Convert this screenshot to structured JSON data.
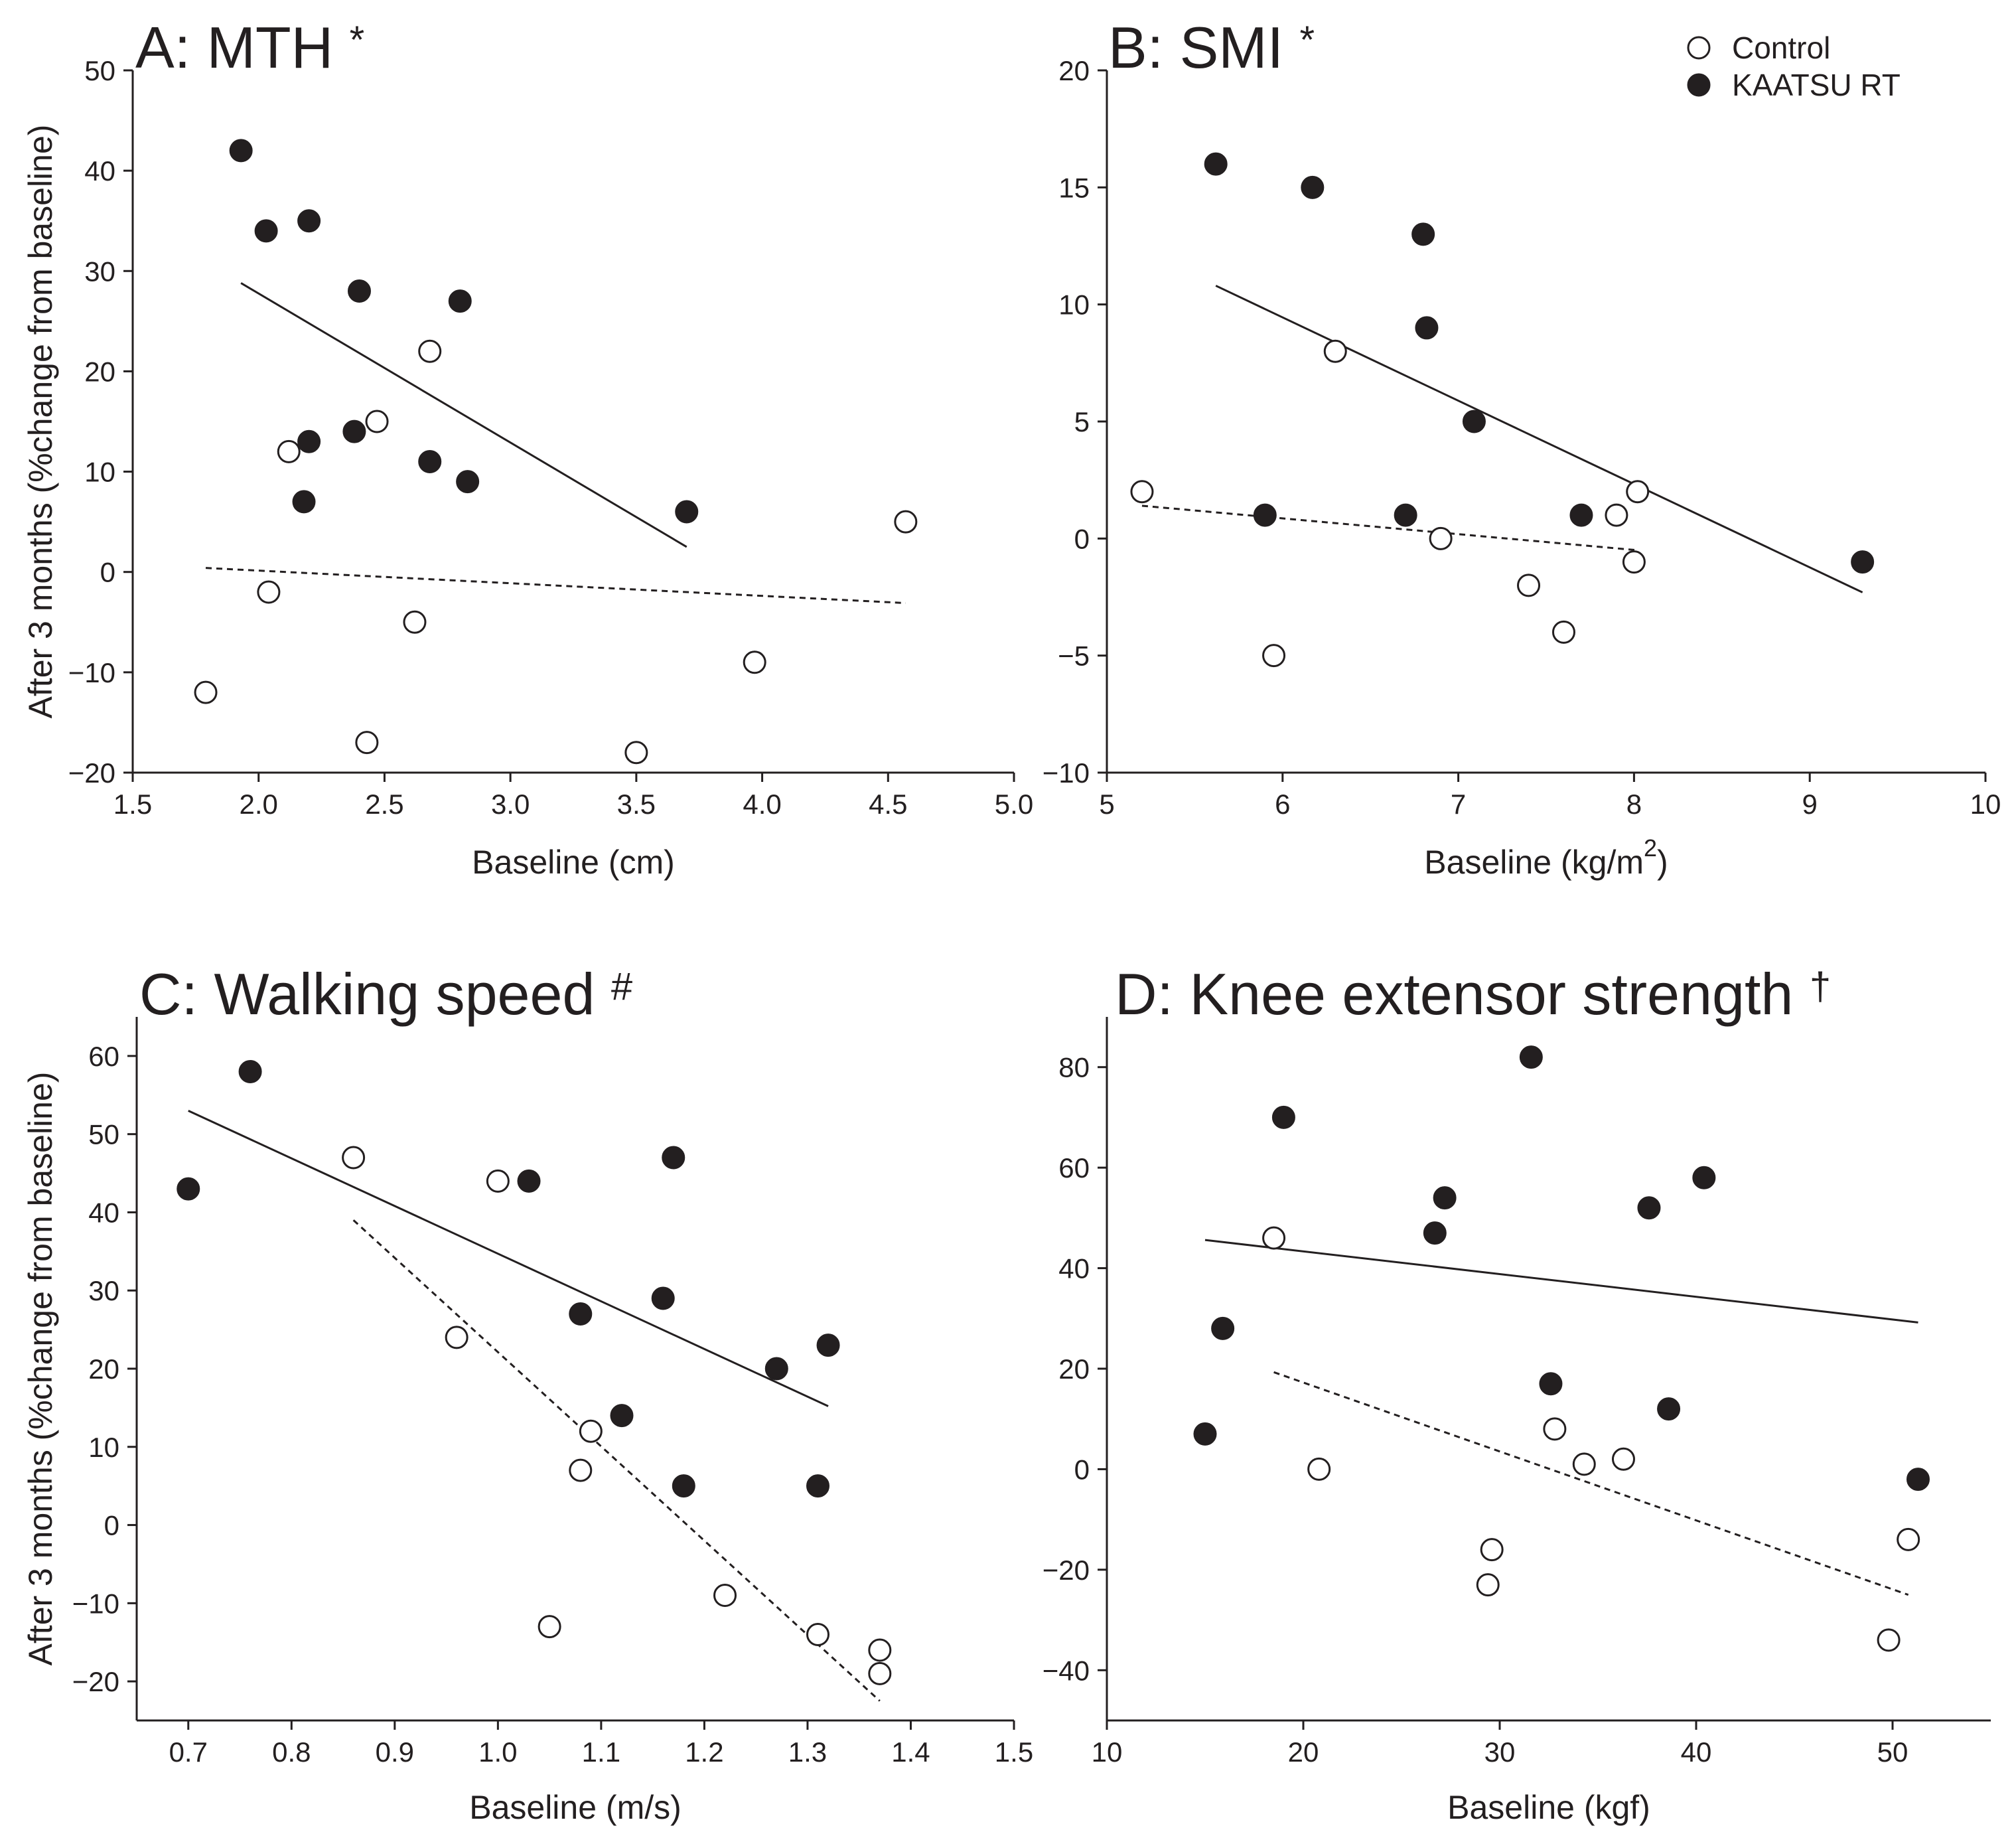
{
  "ylabel": "After 3 months (%change from baseline)",
  "legend": {
    "position": "top-right",
    "items": [
      {
        "label": "Control",
        "marker": "open-circle"
      },
      {
        "label": "KAATSU RT",
        "marker": "filled-circle"
      }
    ]
  },
  "colors": {
    "ink": "#231f20",
    "background": "#ffffff"
  },
  "chart_data": [
    {
      "type": "scatter",
      "title": "A: MTH",
      "title_mark": "*",
      "xlabel": "Baseline (cm)",
      "ylabel": "After 3 months (%change from baseline)",
      "xlim": [
        1.5,
        5.0
      ],
      "ylim": [
        -20,
        50
      ],
      "xticks": [
        1.5,
        2.0,
        2.5,
        3.0,
        3.5,
        4.0,
        4.5,
        5.0
      ],
      "xtick_labels": [
        "1.5",
        "2.0",
        "2.5",
        "3.0",
        "3.5",
        "4.0",
        "4.5",
        "5.0"
      ],
      "yticks": [
        -20,
        -10,
        0,
        10,
        20,
        30,
        40,
        50
      ],
      "ytick_labels": [
        "−20",
        "−10",
        "0",
        "10",
        "20",
        "30",
        "40",
        "50"
      ],
      "series": [
        {
          "name": "Control",
          "points": [
            [
              1.79,
              -12
            ],
            [
              2.04,
              -2
            ],
            [
              2.12,
              12
            ],
            [
              2.43,
              -17
            ],
            [
              2.47,
              15
            ],
            [
              2.62,
              -5
            ],
            [
              2.68,
              22
            ],
            [
              3.5,
              -18
            ],
            [
              3.97,
              -9
            ],
            [
              4.57,
              5
            ]
          ]
        },
        {
          "name": "KAATSU RT",
          "points": [
            [
              1.93,
              42
            ],
            [
              2.03,
              34
            ],
            [
              2.2,
              35
            ],
            [
              2.4,
              28
            ],
            [
              2.8,
              27
            ],
            [
              2.38,
              14
            ],
            [
              2.2,
              13
            ],
            [
              2.68,
              11
            ],
            [
              2.18,
              7
            ],
            [
              2.83,
              9
            ],
            [
              3.7,
              6
            ]
          ]
        }
      ],
      "fit_lines": [
        {
          "series": "KAATSU RT",
          "style": "solid",
          "from": [
            1.93,
            28.8
          ],
          "to": [
            3.7,
            2.5
          ]
        },
        {
          "series": "Control",
          "style": "dashed",
          "from": [
            1.79,
            0.4
          ],
          "to": [
            4.57,
            -3.1
          ]
        }
      ]
    },
    {
      "type": "scatter",
      "title": "B: SMI",
      "title_mark": "*",
      "xlabel": "Baseline (kg/m",
      "xlabel_sup": "2",
      "xlabel_end": ")",
      "ylabel": "",
      "xlim": [
        5,
        10
      ],
      "ylim": [
        -10,
        20
      ],
      "xticks": [
        5,
        6,
        7,
        8,
        9,
        10
      ],
      "xtick_labels": [
        "5",
        "6",
        "7",
        "8",
        "9",
        "10"
      ],
      "yticks": [
        -10,
        -5,
        0,
        5,
        10,
        15,
        20
      ],
      "ytick_labels": [
        "−10",
        "−5",
        "0",
        "5",
        "10",
        "15",
        "20"
      ],
      "series": [
        {
          "name": "Control",
          "points": [
            [
              5.2,
              2
            ],
            [
              5.95,
              -5
            ],
            [
              6.3,
              8
            ],
            [
              6.9,
              0
            ],
            [
              7.4,
              -2
            ],
            [
              7.6,
              -4
            ],
            [
              7.9,
              1
            ],
            [
              8.0,
              -1
            ],
            [
              8.02,
              2
            ]
          ]
        },
        {
          "name": "KAATSU RT",
          "points": [
            [
              5.62,
              16
            ],
            [
              6.17,
              15
            ],
            [
              6.8,
              13
            ],
            [
              6.82,
              9
            ],
            [
              7.09,
              5
            ],
            [
              5.9,
              1
            ],
            [
              6.7,
              1
            ],
            [
              7.7,
              1
            ],
            [
              9.3,
              -1
            ]
          ]
        }
      ],
      "fit_lines": [
        {
          "series": "KAATSU RT",
          "style": "solid",
          "from": [
            5.62,
            10.8
          ],
          "to": [
            9.3,
            -2.3
          ]
        },
        {
          "series": "Control",
          "style": "dashed",
          "from": [
            5.2,
            1.4
          ],
          "to": [
            8.02,
            -0.5
          ]
        }
      ]
    },
    {
      "type": "scatter",
      "title": "C: Walking speed",
      "title_mark": "#",
      "xlabel": "Baseline (m/s)",
      "ylabel": "After 3 months (%change from baseline)",
      "xlim": [
        0.65,
        1.5
      ],
      "ylim": [
        -25,
        65
      ],
      "xticks": [
        0.7,
        0.8,
        0.9,
        1.0,
        1.1,
        1.2,
        1.3,
        1.4,
        1.5
      ],
      "xtick_labels": [
        "0.7",
        "0.8",
        "0.9",
        "1.0",
        "1.1",
        "1.2",
        "1.3",
        "1.4",
        "1.5"
      ],
      "yticks": [
        -20,
        -10,
        0,
        10,
        20,
        30,
        40,
        50,
        60
      ],
      "ytick_labels": [
        "−20",
        "−10",
        "0",
        "10",
        "20",
        "30",
        "40",
        "50",
        "60"
      ],
      "series": [
        {
          "name": "Control",
          "points": [
            [
              0.86,
              47
            ],
            [
              0.96,
              24
            ],
            [
              1.0,
              44
            ],
            [
              1.05,
              -13
            ],
            [
              1.08,
              7
            ],
            [
              1.09,
              12
            ],
            [
              1.22,
              -9
            ],
            [
              1.31,
              -14
            ],
            [
              1.37,
              -16
            ],
            [
              1.37,
              -19
            ]
          ]
        },
        {
          "name": "KAATSU RT",
          "points": [
            [
              0.7,
              43
            ],
            [
              0.76,
              58
            ],
            [
              1.03,
              44
            ],
            [
              1.08,
              27
            ],
            [
              1.12,
              14
            ],
            [
              1.16,
              29
            ],
            [
              1.17,
              47
            ],
            [
              1.18,
              5
            ],
            [
              1.27,
              20
            ],
            [
              1.31,
              5
            ],
            [
              1.32,
              23
            ]
          ]
        }
      ],
      "fit_lines": [
        {
          "series": "KAATSU RT",
          "style": "solid",
          "from": [
            0.7,
            53
          ],
          "to": [
            1.32,
            15.2
          ]
        },
        {
          "series": "Control",
          "style": "dashed",
          "from": [
            0.86,
            39
          ],
          "to": [
            1.37,
            -22.5
          ]
        }
      ]
    },
    {
      "type": "scatter",
      "title": "D: Knee extensor strength",
      "title_mark": "†",
      "xlabel": "Baseline (kgf)",
      "ylabel": "",
      "xlim": [
        10,
        55
      ],
      "ylim": [
        -50,
        90
      ],
      "xticks": [
        10,
        20,
        30,
        40,
        50
      ],
      "xtick_labels": [
        "10",
        "20",
        "30",
        "40",
        "50"
      ],
      "yticks": [
        -40,
        -20,
        0,
        20,
        40,
        60,
        80
      ],
      "ytick_labels": [
        "−40",
        "−20",
        "0",
        "20",
        "40",
        "60",
        "80"
      ],
      "series": [
        {
          "name": "Control",
          "points": [
            [
              18.5,
              46
            ],
            [
              20.8,
              0
            ],
            [
              29.4,
              -23
            ],
            [
              29.6,
              -16
            ],
            [
              32.8,
              8
            ],
            [
              34.3,
              1
            ],
            [
              36.3,
              2
            ],
            [
              49.8,
              -34
            ],
            [
              50.8,
              -14
            ]
          ]
        },
        {
          "name": "KAATSU RT",
          "points": [
            [
              15.0,
              7
            ],
            [
              15.9,
              28
            ],
            [
              19.0,
              70
            ],
            [
              26.7,
              47
            ],
            [
              27.2,
              54
            ],
            [
              31.6,
              82
            ],
            [
              32.6,
              17
            ],
            [
              37.6,
              52
            ],
            [
              38.6,
              12
            ],
            [
              40.4,
              58
            ],
            [
              51.3,
              -2
            ]
          ]
        }
      ],
      "fit_lines": [
        {
          "series": "KAATSU RT",
          "style": "solid",
          "from": [
            15.0,
            45.6
          ],
          "to": [
            51.3,
            29.2
          ]
        },
        {
          "series": "Control",
          "style": "dashed",
          "from": [
            18.5,
            19.3
          ],
          "to": [
            50.8,
            -25
          ]
        }
      ]
    }
  ]
}
